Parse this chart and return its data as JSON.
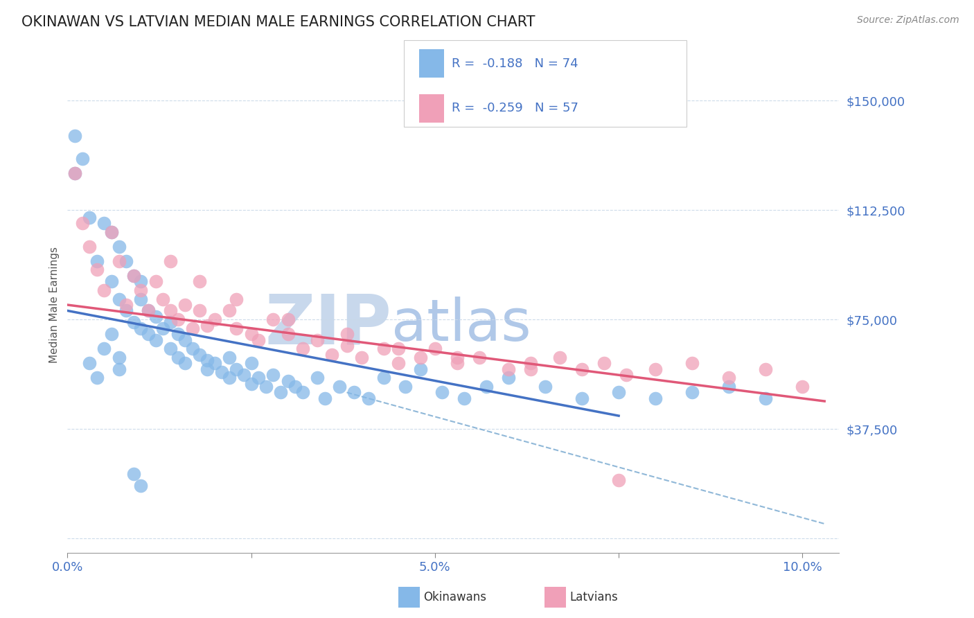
{
  "title": "OKINAWAN VS LATVIAN MEDIAN MALE EARNINGS CORRELATION CHART",
  "source_text": "Source: ZipAtlas.com",
  "ylabel": "Median Male Earnings",
  "xlim": [
    0.0,
    0.105
  ],
  "ylim": [
    -5000,
    165000
  ],
  "yticks": [
    0,
    37500,
    75000,
    112500,
    150000
  ],
  "ytick_labels": [
    "",
    "$37,500",
    "$75,000",
    "$112,500",
    "$150,000"
  ],
  "xticks": [
    0.0,
    0.025,
    0.05,
    0.075,
    0.1
  ],
  "xtick_labels": [
    "0.0%",
    "",
    "5.0%",
    "",
    "10.0%"
  ],
  "title_color": "#222222",
  "title_fontsize": 15,
  "axis_color": "#4472C4",
  "watermark_zip": "ZIP",
  "watermark_atlas": "atlas",
  "watermark_color_zip": "#c8d8ec",
  "watermark_color_atlas": "#b0c8e8",
  "legend_R1": "R =  -0.188",
  "legend_N1": "N = 74",
  "legend_R2": "R =  -0.259",
  "legend_N2": "N = 57",
  "okinawan_color": "#85b8e8",
  "latvian_color": "#f0a0b8",
  "okinawan_line_color": "#4472C4",
  "latvian_line_color": "#e05878",
  "dashed_line_color": "#90b8d8",
  "okinawan_scatter_x": [
    0.001,
    0.001,
    0.002,
    0.003,
    0.004,
    0.005,
    0.006,
    0.006,
    0.007,
    0.007,
    0.008,
    0.008,
    0.009,
    0.009,
    0.01,
    0.01,
    0.01,
    0.011,
    0.011,
    0.012,
    0.012,
    0.013,
    0.014,
    0.014,
    0.015,
    0.015,
    0.016,
    0.016,
    0.017,
    0.018,
    0.019,
    0.019,
    0.02,
    0.021,
    0.022,
    0.022,
    0.023,
    0.024,
    0.025,
    0.025,
    0.026,
    0.027,
    0.028,
    0.029,
    0.03,
    0.031,
    0.032,
    0.034,
    0.035,
    0.037,
    0.039,
    0.041,
    0.043,
    0.046,
    0.048,
    0.051,
    0.054,
    0.057,
    0.06,
    0.065,
    0.07,
    0.075,
    0.08,
    0.085,
    0.09,
    0.095,
    0.003,
    0.004,
    0.005,
    0.006,
    0.007,
    0.007,
    0.009,
    0.01
  ],
  "okinawan_scatter_y": [
    138000,
    125000,
    130000,
    110000,
    95000,
    108000,
    105000,
    88000,
    100000,
    82000,
    95000,
    78000,
    90000,
    74000,
    88000,
    82000,
    72000,
    78000,
    70000,
    76000,
    68000,
    72000,
    74000,
    65000,
    70000,
    62000,
    68000,
    60000,
    65000,
    63000,
    61000,
    58000,
    60000,
    57000,
    62000,
    55000,
    58000,
    56000,
    60000,
    53000,
    55000,
    52000,
    56000,
    50000,
    54000,
    52000,
    50000,
    55000,
    48000,
    52000,
    50000,
    48000,
    55000,
    52000,
    58000,
    50000,
    48000,
    52000,
    55000,
    52000,
    48000,
    50000,
    48000,
    50000,
    52000,
    48000,
    60000,
    55000,
    65000,
    70000,
    62000,
    58000,
    22000,
    18000
  ],
  "latvian_scatter_x": [
    0.001,
    0.002,
    0.003,
    0.004,
    0.005,
    0.006,
    0.007,
    0.008,
    0.009,
    0.01,
    0.011,
    0.012,
    0.013,
    0.014,
    0.015,
    0.016,
    0.017,
    0.018,
    0.019,
    0.02,
    0.022,
    0.023,
    0.025,
    0.026,
    0.028,
    0.03,
    0.032,
    0.034,
    0.036,
    0.038,
    0.04,
    0.043,
    0.045,
    0.048,
    0.05,
    0.053,
    0.056,
    0.06,
    0.063,
    0.067,
    0.07,
    0.073,
    0.076,
    0.08,
    0.085,
    0.09,
    0.095,
    0.1,
    0.014,
    0.018,
    0.023,
    0.03,
    0.038,
    0.045,
    0.053,
    0.063,
    0.075
  ],
  "latvian_scatter_y": [
    125000,
    108000,
    100000,
    92000,
    85000,
    105000,
    95000,
    80000,
    90000,
    85000,
    78000,
    88000,
    82000,
    78000,
    75000,
    80000,
    72000,
    78000,
    73000,
    75000,
    78000,
    72000,
    70000,
    68000,
    75000,
    70000,
    65000,
    68000,
    63000,
    66000,
    62000,
    65000,
    60000,
    62000,
    65000,
    60000,
    62000,
    58000,
    60000,
    62000,
    58000,
    60000,
    56000,
    58000,
    60000,
    55000,
    58000,
    52000,
    95000,
    88000,
    82000,
    75000,
    70000,
    65000,
    62000,
    58000,
    20000
  ],
  "okinawan_trend_x": [
    0.0,
    0.075
  ],
  "okinawan_trend_y": [
    78000,
    42000
  ],
  "latvian_trend_x": [
    0.0,
    0.103
  ],
  "latvian_trend_y": [
    80000,
    47000
  ],
  "dashed_trend_x": [
    0.038,
    0.103
  ],
  "dashed_trend_y": [
    50000,
    5000
  ]
}
